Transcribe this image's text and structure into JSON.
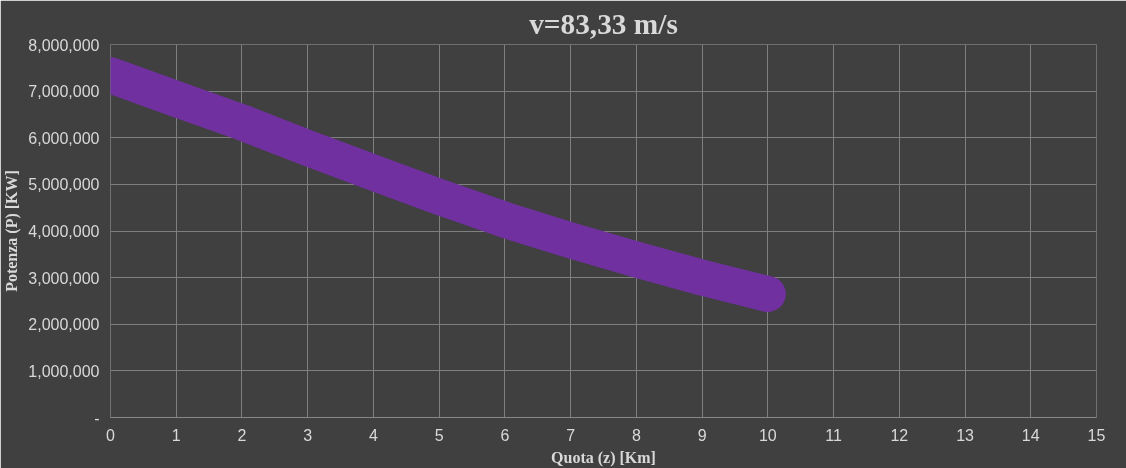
{
  "chart_data": {
    "type": "line",
    "title": "v=83,33 m/s",
    "xlabel": "Quota (z) [Km]",
    "ylabel": "Potenza (P) [KW]",
    "x": [
      0,
      1,
      2,
      3,
      4,
      5,
      6,
      7,
      8,
      9,
      10
    ],
    "series": [
      {
        "color": "#7030a0",
        "values": [
          7340000,
          6830000,
          6330000,
          5780000,
          5250000,
          4730000,
          4240000,
          3800000,
          3390000,
          3000000,
          2650000
        ]
      }
    ],
    "xlim": [
      0,
      15
    ],
    "xticks": [
      0,
      1,
      2,
      3,
      4,
      5,
      6,
      7,
      8,
      9,
      10,
      11,
      12,
      13,
      14,
      15
    ],
    "ylim": [
      0,
      8000000
    ],
    "yticks": [
      {
        "value": 0,
        "label": "-"
      },
      {
        "value": 1000000,
        "label": "1,000,000"
      },
      {
        "value": 2000000,
        "label": "2,000,000"
      },
      {
        "value": 3000000,
        "label": "3,000,000"
      },
      {
        "value": 4000000,
        "label": "4,000,000"
      },
      {
        "value": 5000000,
        "label": "5,000,000"
      },
      {
        "value": 6000000,
        "label": "6,000,000"
      },
      {
        "value": 7000000,
        "label": "7,000,000"
      },
      {
        "value": 8000000,
        "label": "8,000,000"
      }
    ],
    "grid": true,
    "marker": "none",
    "line_style": "solid"
  }
}
